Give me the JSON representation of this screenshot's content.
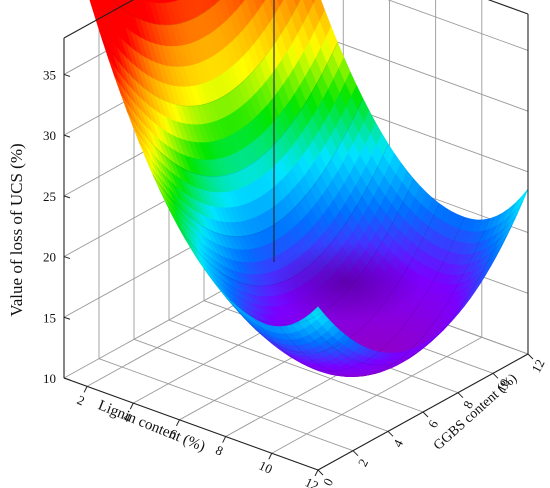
{
  "chart_data": {
    "type": "surface",
    "title": "",
    "xlabel": "Lignin content (%)",
    "ylabel": "GGBS content (%)",
    "zlabel": "Value of loss of UCS (%)",
    "x_ticks": [
      2,
      4,
      6,
      8,
      10,
      12
    ],
    "y_ticks": [
      0,
      2,
      4,
      6,
      8,
      10,
      12
    ],
    "z_ticks": [
      10,
      15,
      20,
      25,
      30,
      35
    ],
    "xlim": [
      1,
      12
    ],
    "ylim": [
      0,
      12
    ],
    "zlim": [
      10,
      38
    ],
    "grid": true,
    "colormap": [
      "#ff0000",
      "#ff8c00",
      "#ffff00",
      "#00e600",
      "#00e5ff",
      "#0070ff",
      "#7a00ff",
      "#9000c8"
    ],
    "surface_samples": [
      {
        "x": 1,
        "y": 0,
        "z": 37.5
      },
      {
        "x": 6,
        "y": 0,
        "z": 20.5
      },
      {
        "x": 12,
        "y": 0,
        "z": 12.3
      },
      {
        "x": 12,
        "y": 6,
        "z": 15.5
      },
      {
        "x": 12,
        "y": 12,
        "z": 22.5
      },
      {
        "x": 7,
        "y": 6,
        "z": 14.5
      }
    ]
  }
}
